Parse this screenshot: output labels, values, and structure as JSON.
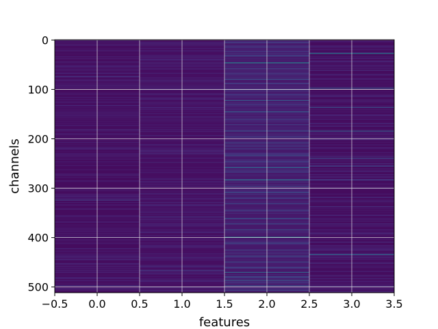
{
  "chart_data": {
    "type": "heatmap",
    "xlabel": "features",
    "ylabel": "channels",
    "x_ticks": [
      -0.5,
      0.0,
      0.5,
      1.0,
      1.5,
      2.0,
      2.5,
      3.0,
      3.5
    ],
    "x_tick_labels": [
      "−0.5",
      "0.0",
      "0.5",
      "1.0",
      "1.5",
      "2.0",
      "2.5",
      "3.0",
      "3.5"
    ],
    "y_ticks": [
      0,
      100,
      200,
      300,
      400,
      500
    ],
    "y_tick_labels": [
      "0",
      "100",
      "200",
      "300",
      "400",
      "500"
    ],
    "xlim": [
      -0.5,
      3.5
    ],
    "ylim": [
      511.5,
      -0.5
    ],
    "colormap": "viridis",
    "background_color": "#440154",
    "grid": true,
    "n_channels": 512,
    "features": [
      {
        "index": 0,
        "base_intensity": 0.04,
        "highlights": [
          [
            8,
            0.12
          ],
          [
            20,
            0.1
          ],
          [
            33,
            0.09
          ],
          [
            45,
            0.11
          ],
          [
            61,
            0.1
          ],
          [
            74,
            0.18
          ],
          [
            82,
            0.12
          ],
          [
            97,
            0.1
          ],
          [
            110,
            0.09
          ],
          [
            125,
            0.1
          ],
          [
            133,
            0.11
          ],
          [
            150,
            0.09
          ],
          [
            172,
            0.1
          ],
          [
            190,
            0.12
          ],
          [
            203,
            0.09
          ],
          [
            219,
            0.11
          ],
          [
            236,
            0.1
          ],
          [
            254,
            0.09
          ],
          [
            271,
            0.1
          ],
          [
            286,
            0.09
          ],
          [
            302,
            0.1
          ],
          [
            324,
            0.2
          ],
          [
            341,
            0.1
          ],
          [
            356,
            0.11
          ],
          [
            368,
            0.12
          ],
          [
            381,
            0.09
          ],
          [
            398,
            0.1
          ],
          [
            412,
            0.09
          ],
          [
            437,
            0.1
          ],
          [
            452,
            0.12
          ],
          [
            466,
            0.11
          ],
          [
            480,
            0.1
          ],
          [
            497,
            0.18
          ],
          [
            506,
            0.12
          ]
        ]
      },
      {
        "index": 1,
        "base_intensity": 0.05,
        "highlights": [
          [
            6,
            0.12
          ],
          [
            21,
            0.1
          ],
          [
            34,
            0.15
          ],
          [
            50,
            0.1
          ],
          [
            67,
            0.11
          ],
          [
            85,
            0.1
          ],
          [
            99,
            0.12
          ],
          [
            118,
            0.1
          ],
          [
            140,
            0.11
          ],
          [
            162,
            0.1
          ],
          [
            181,
            0.1
          ],
          [
            200,
            0.12
          ],
          [
            212,
            0.14
          ],
          [
            224,
            0.11
          ],
          [
            247,
            0.1
          ],
          [
            268,
            0.1
          ],
          [
            292,
            0.11
          ],
          [
            310,
            0.1
          ],
          [
            329,
            0.12
          ],
          [
            348,
            0.13
          ],
          [
            358,
            0.18
          ],
          [
            372,
            0.12
          ],
          [
            389,
            0.14
          ],
          [
            405,
            0.1
          ],
          [
            420,
            0.12
          ],
          [
            441,
            0.11
          ],
          [
            458,
            0.14
          ],
          [
            466,
            0.2
          ],
          [
            472,
            0.12
          ],
          [
            488,
            0.14
          ],
          [
            501,
            0.12
          ]
        ]
      },
      {
        "index": 2,
        "base_intensity": 0.09,
        "highlights": [
          [
            5,
            0.22
          ],
          [
            14,
            0.25
          ],
          [
            23,
            0.2
          ],
          [
            32,
            0.28
          ],
          [
            46,
            0.55
          ],
          [
            58,
            0.25
          ],
          [
            68,
            0.22
          ],
          [
            79,
            0.3
          ],
          [
            88,
            0.24
          ],
          [
            100,
            0.26
          ],
          [
            110,
            0.22
          ],
          [
            122,
            0.35
          ],
          [
            131,
            0.24
          ],
          [
            145,
            0.38
          ],
          [
            160,
            0.26
          ],
          [
            171,
            0.22
          ],
          [
            184,
            0.3
          ],
          [
            196,
            0.24
          ],
          [
            208,
            0.27
          ],
          [
            220,
            0.24
          ],
          [
            233,
            0.3
          ],
          [
            246,
            0.26
          ],
          [
            258,
            0.42
          ],
          [
            267,
            0.25
          ],
          [
            283,
            0.48
          ],
          [
            296,
            0.26
          ],
          [
            308,
            0.3
          ],
          [
            320,
            0.24
          ],
          [
            331,
            0.28
          ],
          [
            344,
            0.26
          ],
          [
            361,
            0.34
          ],
          [
            372,
            0.28
          ],
          [
            384,
            0.3
          ],
          [
            399,
            0.6
          ],
          [
            411,
            0.3
          ],
          [
            425,
            0.26
          ],
          [
            437,
            0.3
          ],
          [
            449,
            0.28
          ],
          [
            461,
            0.26
          ],
          [
            470,
            0.4
          ],
          [
            479,
            0.3
          ],
          [
            486,
            0.34
          ],
          [
            497,
            0.3
          ],
          [
            506,
            0.26
          ]
        ]
      },
      {
        "index": 3,
        "base_intensity": 0.04,
        "highlights": [
          [
            12,
            0.14
          ],
          [
            27,
            0.5
          ],
          [
            43,
            0.14
          ],
          [
            61,
            0.15
          ],
          [
            78,
            0.12
          ],
          [
            97,
            0.34
          ],
          [
            113,
            0.14
          ],
          [
            136,
            0.3
          ],
          [
            152,
            0.13
          ],
          [
            169,
            0.14
          ],
          [
            184,
            0.36
          ],
          [
            201,
            0.14
          ],
          [
            218,
            0.12
          ],
          [
            239,
            0.28
          ],
          [
            255,
            0.26
          ],
          [
            272,
            0.12
          ],
          [
            283,
            0.24
          ],
          [
            300,
            0.13
          ],
          [
            318,
            0.14
          ],
          [
            337,
            0.16
          ],
          [
            355,
            0.14
          ],
          [
            372,
            0.15
          ],
          [
            391,
            0.13
          ],
          [
            409,
            0.14
          ],
          [
            425,
            0.13
          ],
          [
            434,
            0.4
          ],
          [
            452,
            0.14
          ],
          [
            468,
            0.13
          ],
          [
            483,
            0.14
          ],
          [
            499,
            0.16
          ],
          [
            509,
            0.14
          ]
        ]
      }
    ]
  }
}
